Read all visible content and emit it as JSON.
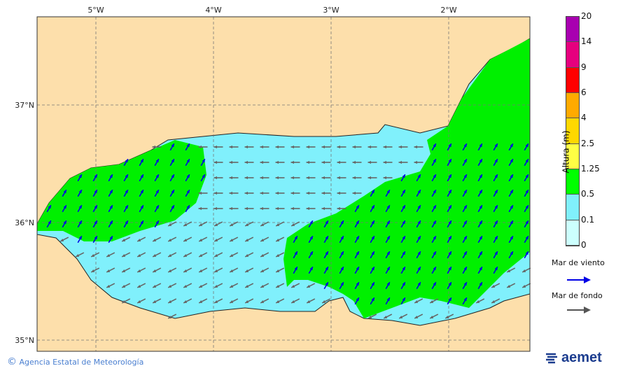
{
  "map": {
    "lon_labels": [
      "5°W",
      "4°W",
      "3°W",
      "2°W"
    ],
    "lat_labels": [
      "37°N",
      "36°N",
      "35°N"
    ],
    "colors": {
      "land": "#fddfab",
      "sea_low": "#ccfffe",
      "sea_mid": "#80f0fc",
      "sea_green": "#00f000",
      "wind_arrow": "#0000e6",
      "swell_arrow": "#666666"
    }
  },
  "legend": {
    "title": "Altura (m)",
    "levels": [
      "20",
      "14",
      "9",
      "6",
      "4",
      "2.5",
      "1.25",
      "0.5",
      "0.1",
      "0"
    ],
    "colors": [
      "#a800b0",
      "#e6007e",
      "#ff0000",
      "#ffaa00",
      "#ffd800",
      "#ffff44",
      "#00ff00",
      "#80f0fc",
      "#ccfffe"
    ],
    "wind_sea_label": "Mar de viento",
    "swell_label": "Mar de fondo"
  },
  "footer": {
    "copyright_symbol": "©",
    "credit": "Agencia Estatal de Meteorología",
    "logo_text": "aemet"
  }
}
